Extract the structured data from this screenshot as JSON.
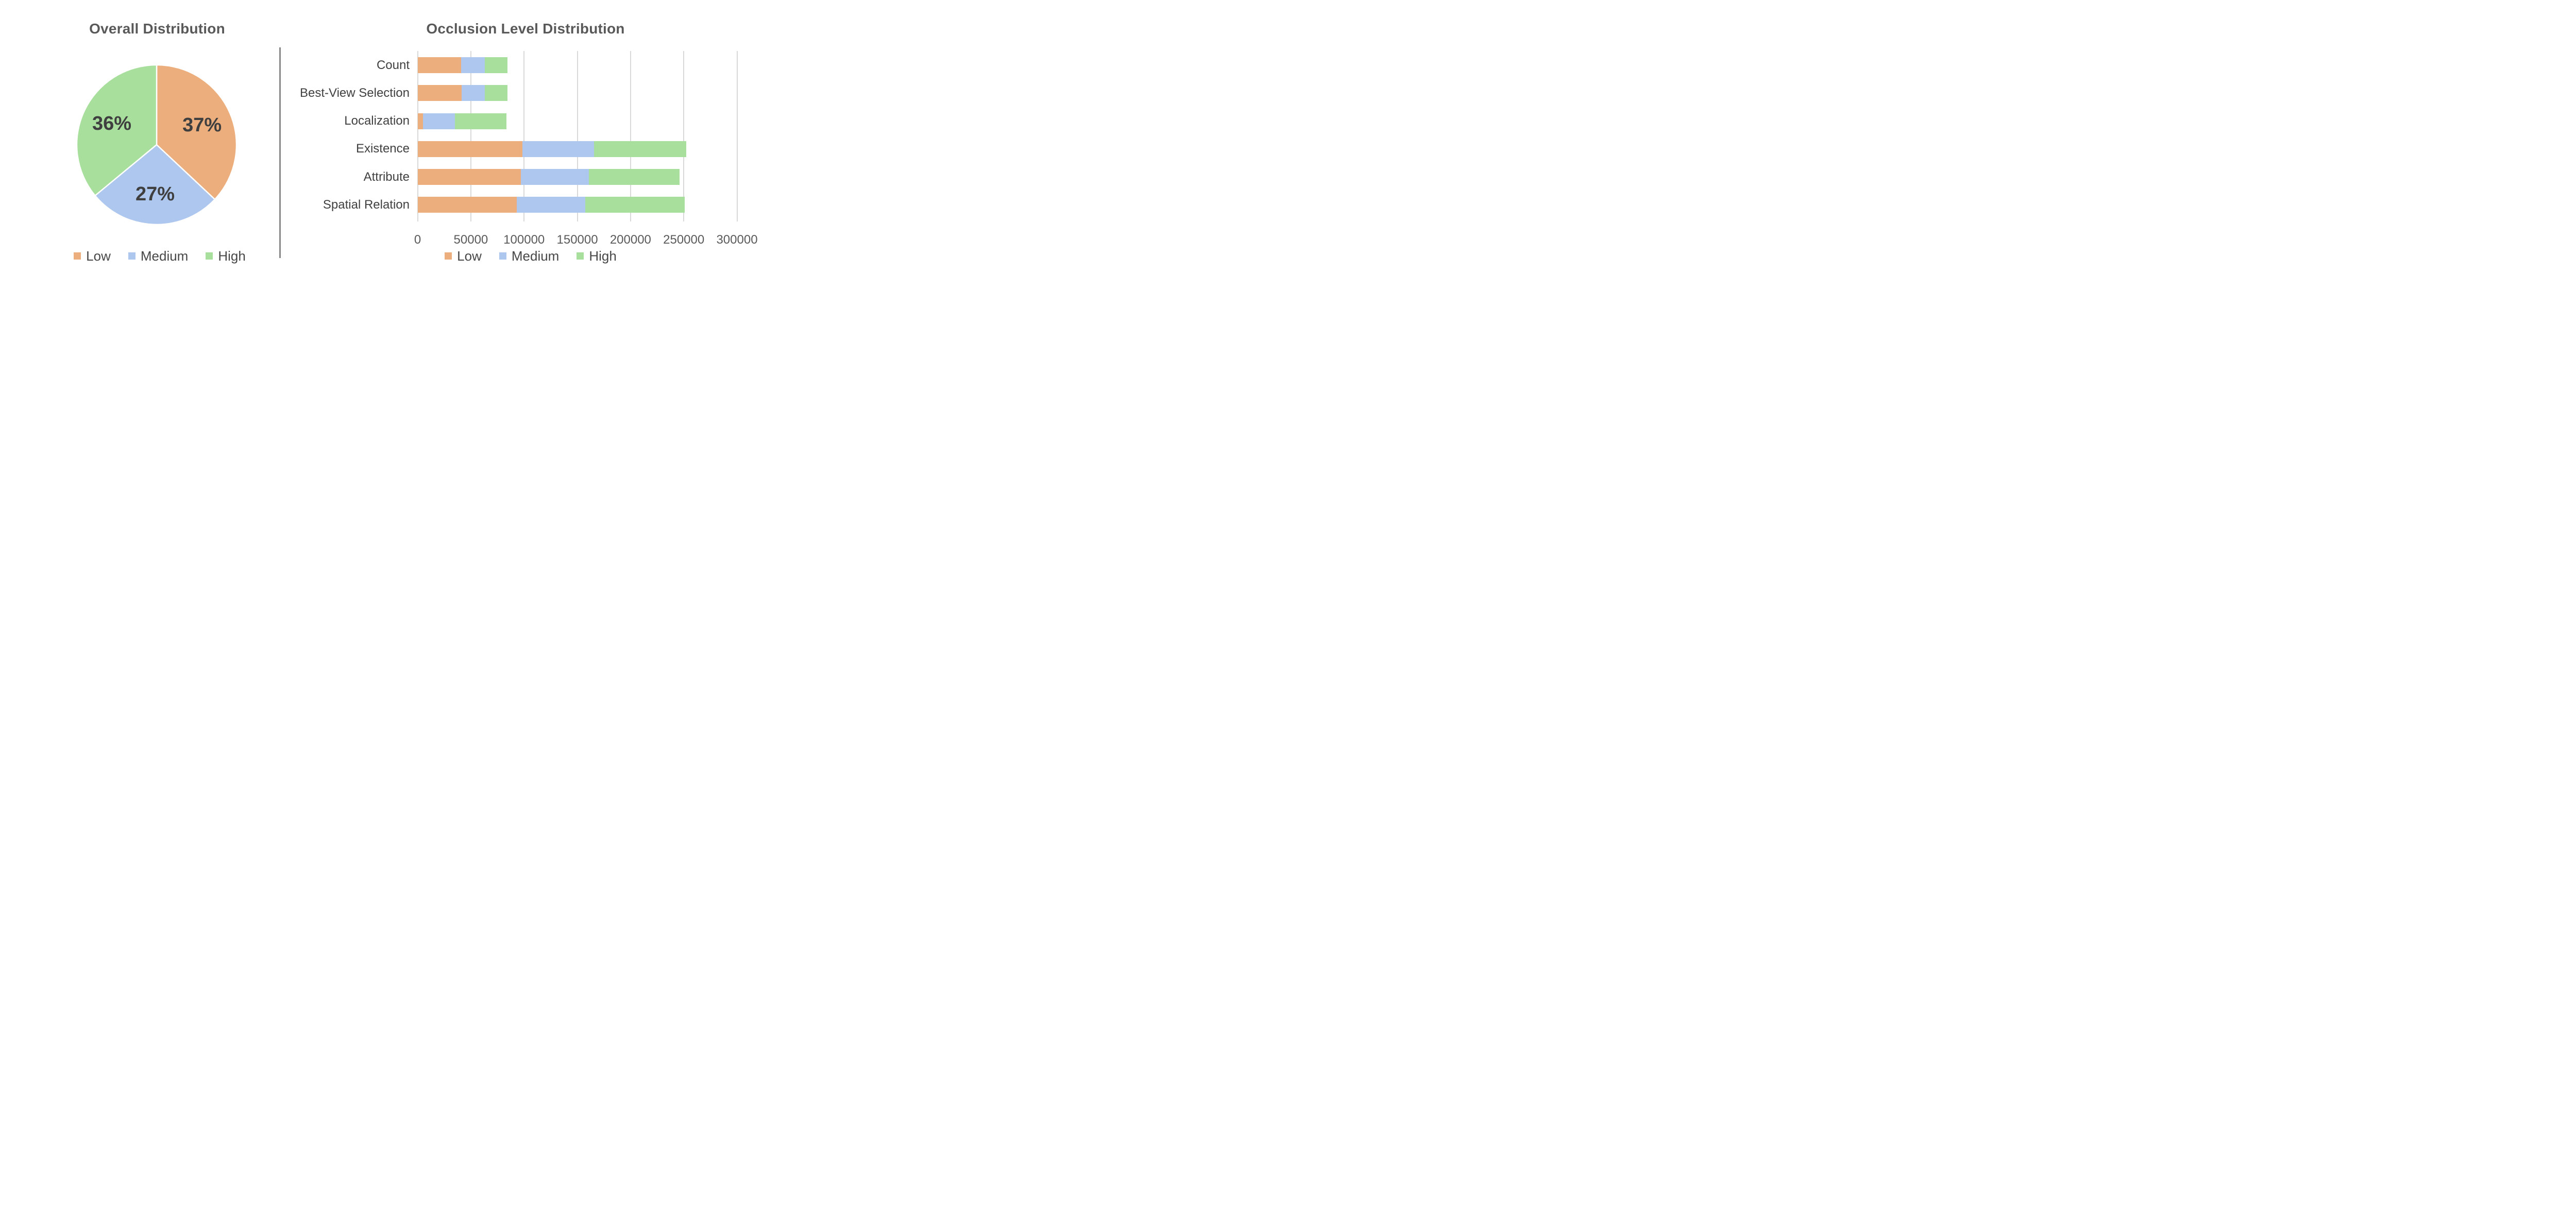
{
  "page": {
    "background": "#FFFFFF"
  },
  "colors": {
    "low": "#ECAE7D",
    "medium": "#AEC7EF",
    "high": "#A8DF9D",
    "title_text": "#595959",
    "pie_label_text": "#3F3F3F",
    "category_text": "#404040",
    "tick_text": "#595959",
    "legend_text": "#474747",
    "grid_line": "#D9D9D9",
    "divider": "#898989",
    "slice_border": "#FFFFFF"
  },
  "chart_data": [
    {
      "type": "pie",
      "title": "Overall Distribution",
      "labels": [
        "Low",
        "Medium",
        "High"
      ],
      "values": [
        37,
        27,
        36
      ],
      "unit": "%",
      "value_labels": [
        "37%",
        "27%",
        "36%"
      ],
      "start_angle": "12-oclock",
      "direction": "clockwise",
      "legend_position": "bottom"
    },
    {
      "type": "bar",
      "orientation": "horizontal",
      "stacked": true,
      "title": "Occlusion Level Distribution",
      "categories": [
        "Count",
        "Best-View Selection",
        "Localization",
        "Existence",
        "Attribute",
        "Spatial Relation"
      ],
      "series": [
        {
          "name": "Low",
          "values": [
            41000,
            41500,
            5000,
            98500,
            97000,
            93000
          ]
        },
        {
          "name": "Medium",
          "values": [
            22000,
            21500,
            30000,
            67000,
            64000,
            64500
          ]
        },
        {
          "name": "High",
          "values": [
            21500,
            21500,
            48500,
            87000,
            85000,
            93500
          ]
        }
      ],
      "xlim": [
        0,
        300000
      ],
      "xticks": [
        0,
        50000,
        100000,
        150000,
        200000,
        250000,
        300000
      ],
      "grid": true,
      "legend_position": "bottom"
    }
  ]
}
